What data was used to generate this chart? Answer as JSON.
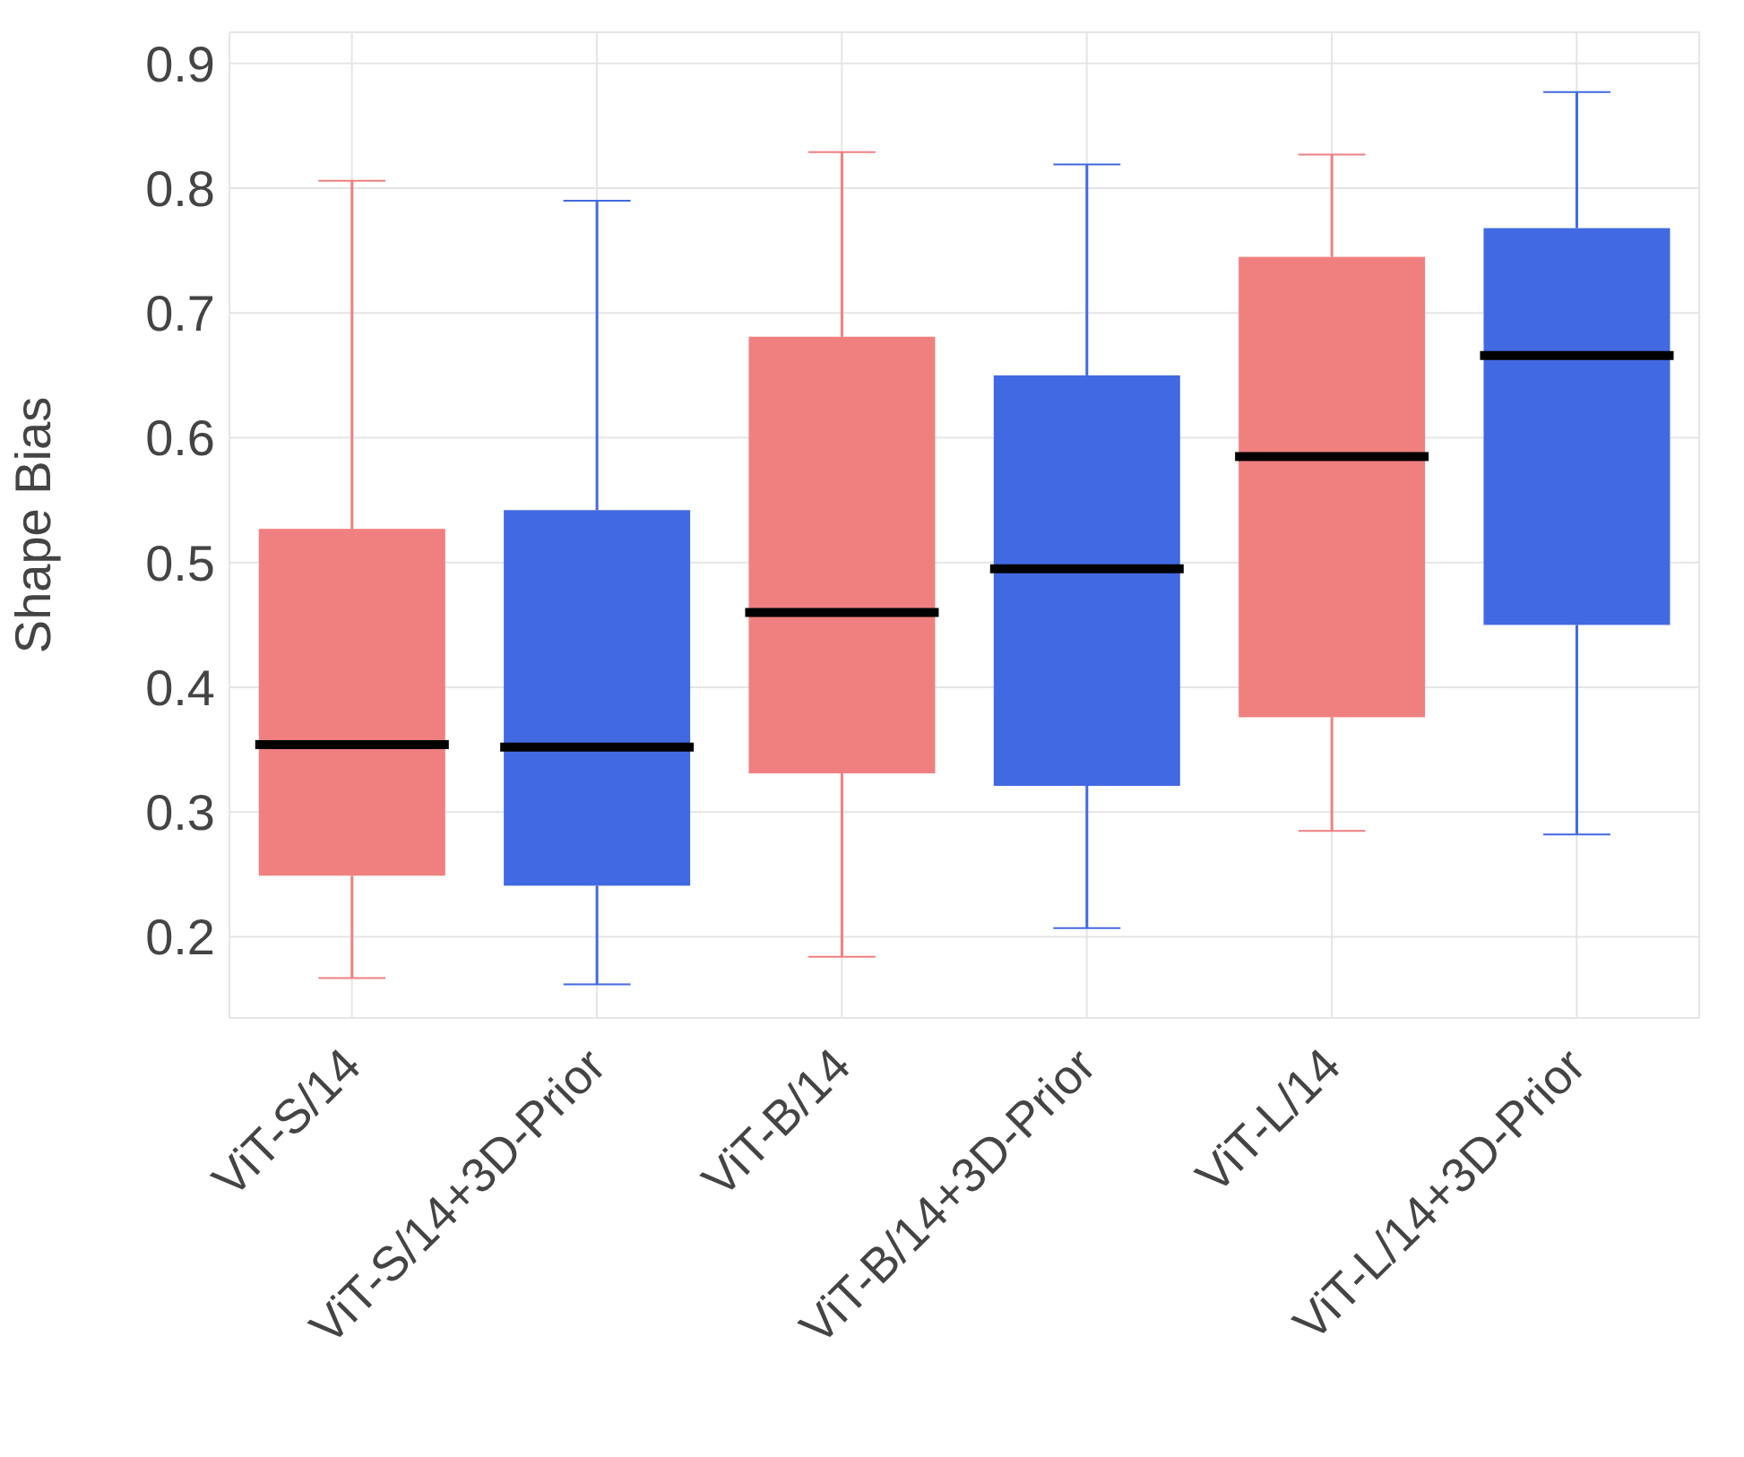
{
  "chart_data": {
    "type": "box",
    "ylabel": "Shape Bias",
    "categories": [
      "ViT-S/14",
      "ViT-S/14+3D-Prior",
      "ViT-B/14",
      "ViT-B/14+3D-Prior",
      "ViT-L/14",
      "ViT-L/14+3D-Prior"
    ],
    "boxes": [
      {
        "low": 0.167,
        "q1": 0.249,
        "median": 0.354,
        "q3": 0.527,
        "high": 0.806
      },
      {
        "low": 0.162,
        "q1": 0.241,
        "median": 0.352,
        "q3": 0.542,
        "high": 0.79
      },
      {
        "low": 0.184,
        "q1": 0.331,
        "median": 0.46,
        "q3": 0.681,
        "high": 0.829
      },
      {
        "low": 0.207,
        "q1": 0.321,
        "median": 0.495,
        "q3": 0.65,
        "high": 0.819
      },
      {
        "low": 0.285,
        "q1": 0.376,
        "median": 0.585,
        "q3": 0.745,
        "high": 0.827
      },
      {
        "low": 0.282,
        "q1": 0.45,
        "median": 0.666,
        "q3": 0.768,
        "high": 0.877
      }
    ],
    "colors": [
      "#f08080",
      "#4169e1",
      "#f08080",
      "#4169e1",
      "#f08080",
      "#4169e1"
    ],
    "ylim": [
      0.135,
      0.925
    ],
    "yticks": [
      0.2,
      0.3,
      0.4,
      0.5,
      0.6,
      0.7,
      0.8,
      0.9
    ],
    "grid": true,
    "legend": false
  }
}
